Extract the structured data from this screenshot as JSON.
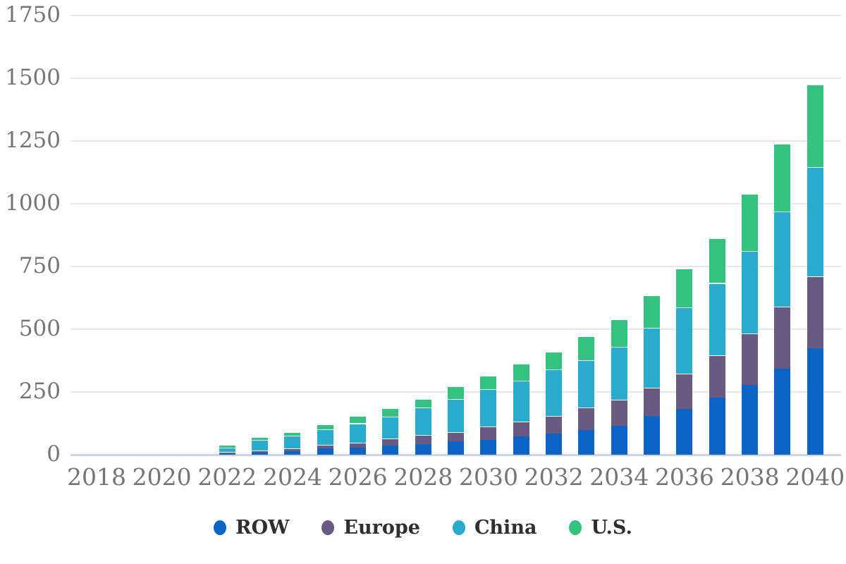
{
  "chart_data": {
    "type": "bar",
    "stacked": true,
    "title": "",
    "xlabel": "",
    "ylabel": "",
    "x": [
      2018,
      2019,
      2020,
      2021,
      2022,
      2023,
      2024,
      2025,
      2026,
      2027,
      2028,
      2029,
      2030,
      2031,
      2032,
      2033,
      2034,
      2035,
      2036,
      2037,
      2038,
      2039,
      2040
    ],
    "series": [
      {
        "name": "ROW",
        "color": "#0b63c5",
        "values": [
          0,
          0,
          0,
          0,
          4,
          9,
          15,
          24,
          27,
          36,
          42,
          52,
          59,
          72,
          85,
          98,
          115,
          154,
          182,
          228,
          277,
          342,
          423
        ]
      },
      {
        "name": "Europe",
        "color": "#685a80",
        "values": [
          0,
          0,
          0,
          0,
          8,
          9,
          10,
          16,
          20,
          28,
          37,
          39,
          53,
          61,
          70,
          89,
          105,
          112,
          140,
          167,
          205,
          247,
          289
        ]
      },
      {
        "name": "China",
        "color": "#28abcd",
        "values": [
          0,
          0,
          0,
          0,
          16,
          40,
          51,
          60,
          78,
          88,
          110,
          131,
          148,
          161,
          185,
          190,
          210,
          240,
          264,
          289,
          331,
          381,
          433
        ]
      },
      {
        "name": "U.S.",
        "color": "#35c17f",
        "values": [
          0,
          0,
          0,
          0,
          12,
          12,
          14,
          22,
          30,
          32,
          33,
          50,
          56,
          68,
          71,
          96,
          108,
          129,
          155,
          179,
          227,
          268,
          330
        ]
      }
    ],
    "totals": [
      0,
      0,
      0,
      0,
      40,
      70,
      90,
      122,
      155,
      184,
      222,
      272,
      316,
      362,
      411,
      473,
      538,
      635,
      741,
      863,
      1040,
      1238,
      1475
    ],
    "ylim": [
      0,
      1750
    ],
    "yticks": [
      0,
      250,
      500,
      750,
      1000,
      1250,
      1500,
      1750
    ],
    "xticks": [
      2018,
      2020,
      2022,
      2024,
      2026,
      2028,
      2030,
      2032,
      2034,
      2036,
      2038,
      2040
    ],
    "grid": true,
    "legend_position": "bottom"
  },
  "legend": {
    "items": [
      {
        "label": "ROW",
        "color": "#0b63c5"
      },
      {
        "label": "Europe",
        "color": "#685a80"
      },
      {
        "label": "China",
        "color": "#28abcd"
      },
      {
        "label": "U.S.",
        "color": "#35c17f"
      }
    ]
  },
  "style_colors": {
    "gridline": "#e8e8e8",
    "baseline": "#ccd5e8",
    "tick_text": "#757575",
    "legend_text": "#2f2f2f",
    "background": "#ffffff"
  }
}
